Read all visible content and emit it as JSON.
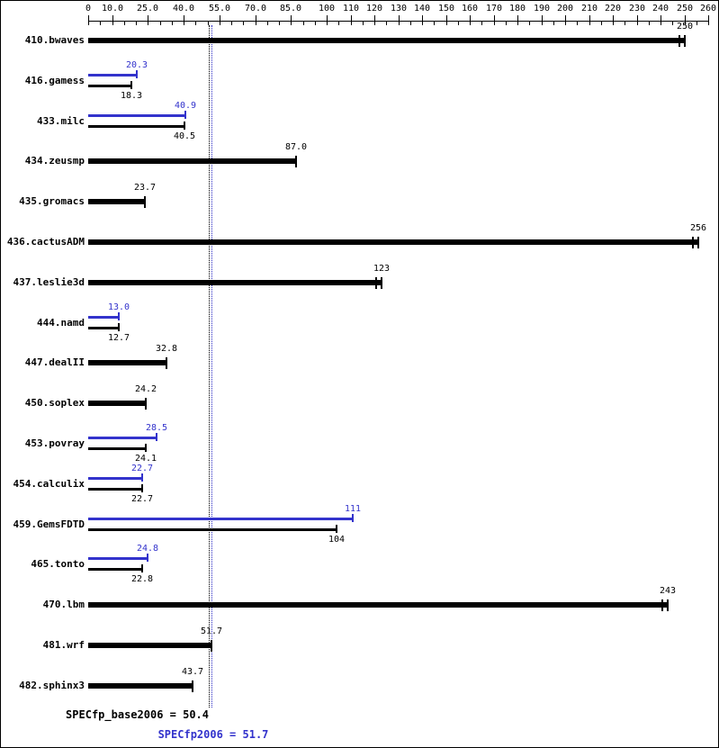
{
  "chart_data": {
    "type": "bar",
    "orientation": "horizontal",
    "title": "",
    "colors": {
      "base": "#000000",
      "peak": "#3333cc",
      "background": "#ffffff"
    },
    "axis": {
      "min": 0,
      "max": 260,
      "position": "top",
      "grid": false,
      "ticks": [
        {
          "v": 0,
          "label": "0"
        },
        {
          "v": 10,
          "label": "10.0"
        },
        {
          "v": 25,
          "label": "25.0"
        },
        {
          "v": 40,
          "label": "40.0"
        },
        {
          "v": 55,
          "label": "55.0"
        },
        {
          "v": 70,
          "label": "70.0"
        },
        {
          "v": 85,
          "label": "85.0"
        },
        {
          "v": 100,
          "label": "100"
        },
        {
          "v": 110,
          "label": "110"
        },
        {
          "v": 120,
          "label": "120"
        },
        {
          "v": 130,
          "label": "130"
        },
        {
          "v": 140,
          "label": "140"
        },
        {
          "v": 150,
          "label": "150"
        },
        {
          "v": 160,
          "label": "160"
        },
        {
          "v": 170,
          "label": "170"
        },
        {
          "v": 180,
          "label": "180"
        },
        {
          "v": 190,
          "label": "190"
        },
        {
          "v": 200,
          "label": "200"
        },
        {
          "v": 210,
          "label": "210"
        },
        {
          "v": 220,
          "label": "220"
        },
        {
          "v": 230,
          "label": "230"
        },
        {
          "v": 240,
          "label": "240"
        },
        {
          "v": 250,
          "label": "250"
        },
        {
          "v": 260,
          "label": "260"
        }
      ]
    },
    "benchmarks": [
      {
        "name": "410.bwaves",
        "base": 250,
        "base_label": "250",
        "double_end_cap": true
      },
      {
        "name": "416.gamess",
        "peak": 20.3,
        "peak_label": "20.3",
        "base": 18.3,
        "base_label": "18.3"
      },
      {
        "name": "433.milc",
        "peak": 40.9,
        "peak_label": "40.9",
        "base": 40.5,
        "base_label": "40.5"
      },
      {
        "name": "434.zeusmp",
        "base": 87.0,
        "base_label": "87.0"
      },
      {
        "name": "435.gromacs",
        "base": 23.7,
        "base_label": "23.7"
      },
      {
        "name": "436.cactusADM",
        "base": 256,
        "base_label": "256",
        "double_end_cap": true
      },
      {
        "name": "437.leslie3d",
        "base": 123,
        "base_label": "123",
        "double_end_cap": true
      },
      {
        "name": "444.namd",
        "peak": 13.0,
        "peak_label": "13.0",
        "base": 12.7,
        "base_label": "12.7"
      },
      {
        "name": "447.dealII",
        "base": 32.8,
        "base_label": "32.8"
      },
      {
        "name": "450.soplex",
        "base": 24.2,
        "base_label": "24.2"
      },
      {
        "name": "453.povray",
        "peak": 28.5,
        "peak_label": "28.5",
        "base": 24.1,
        "base_label": "24.1"
      },
      {
        "name": "454.calculix",
        "peak": 22.7,
        "peak_label": "22.7",
        "base": 22.7,
        "base_label": "22.7"
      },
      {
        "name": "459.GemsFDTD",
        "peak": 111,
        "peak_label": "111",
        "base": 104,
        "base_label": "104"
      },
      {
        "name": "465.tonto",
        "peak": 24.8,
        "peak_label": "24.8",
        "base": 22.8,
        "base_label": "22.8"
      },
      {
        "name": "470.lbm",
        "base": 243,
        "base_label": "243",
        "double_end_cap": true
      },
      {
        "name": "481.wrf",
        "base": 51.7,
        "base_label": "51.7"
      },
      {
        "name": "482.sphinx3",
        "base": 43.7,
        "base_label": "43.7"
      }
    ],
    "reference_lines": [
      {
        "value": 50.4,
        "color": "#000000",
        "series": "base"
      },
      {
        "value": 51.7,
        "color": "#3333cc",
        "series": "peak"
      }
    ],
    "summary": {
      "base": {
        "label": "SPECfp_base2006 = 50.4",
        "value": 50.4,
        "color": "#000000"
      },
      "peak": {
        "label": "SPECfp2006 = 51.7",
        "value": 51.7,
        "color": "#3333cc"
      }
    }
  }
}
